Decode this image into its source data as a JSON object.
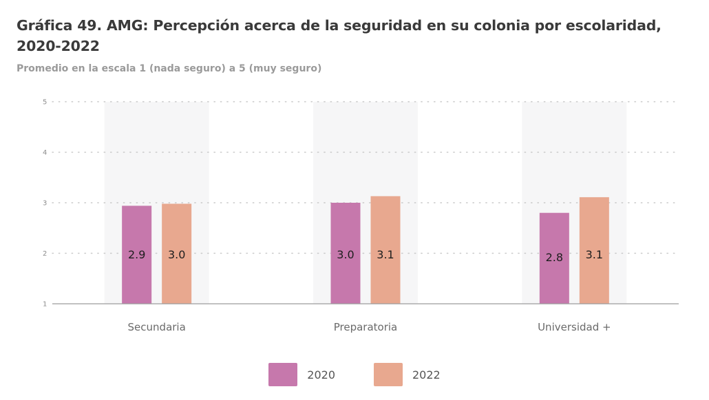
{
  "title": "Gráfica 49. AMG: Percepción acerca de la seguridad en su colonia por escolaridad, 2020-2022",
  "subtitle": "Promedio en la escala 1 (nada seguro) a 5 (muy seguro)",
  "colors": {
    "s2020": "#c678ac",
    "s2022": "#e8a88f",
    "grid": "#c9c9c9",
    "axis": "#9c9c9c",
    "band": "#f6f6f7",
    "tick_text": "#8c8c8c",
    "category_text": "#6a6a6a",
    "label_text": "#1e1e1e"
  },
  "chart_data": {
    "type": "bar",
    "title": "Gráfica 49. AMG: Percepción acerca de la seguridad en su colonia por escolaridad, 2020-2022",
    "subtitle": "Promedio en la escala 1 (nada seguro) a 5 (muy seguro)",
    "categories": [
      "Secundaria",
      "Preparatoria",
      "Universidad +"
    ],
    "series": [
      {
        "name": "2020",
        "values": [
          2.94,
          3.0,
          2.8
        ],
        "labels": [
          "2.9",
          "3.0",
          "2.8"
        ]
      },
      {
        "name": "2022",
        "values": [
          2.98,
          3.13,
          3.11
        ],
        "labels": [
          "3.0",
          "3.1",
          "3.1"
        ]
      }
    ],
    "yticks": [
      "1",
      "2",
      "3",
      "4",
      "5"
    ],
    "ylim": [
      1,
      5
    ],
    "grid": true,
    "legend_position": "bottom-center"
  }
}
